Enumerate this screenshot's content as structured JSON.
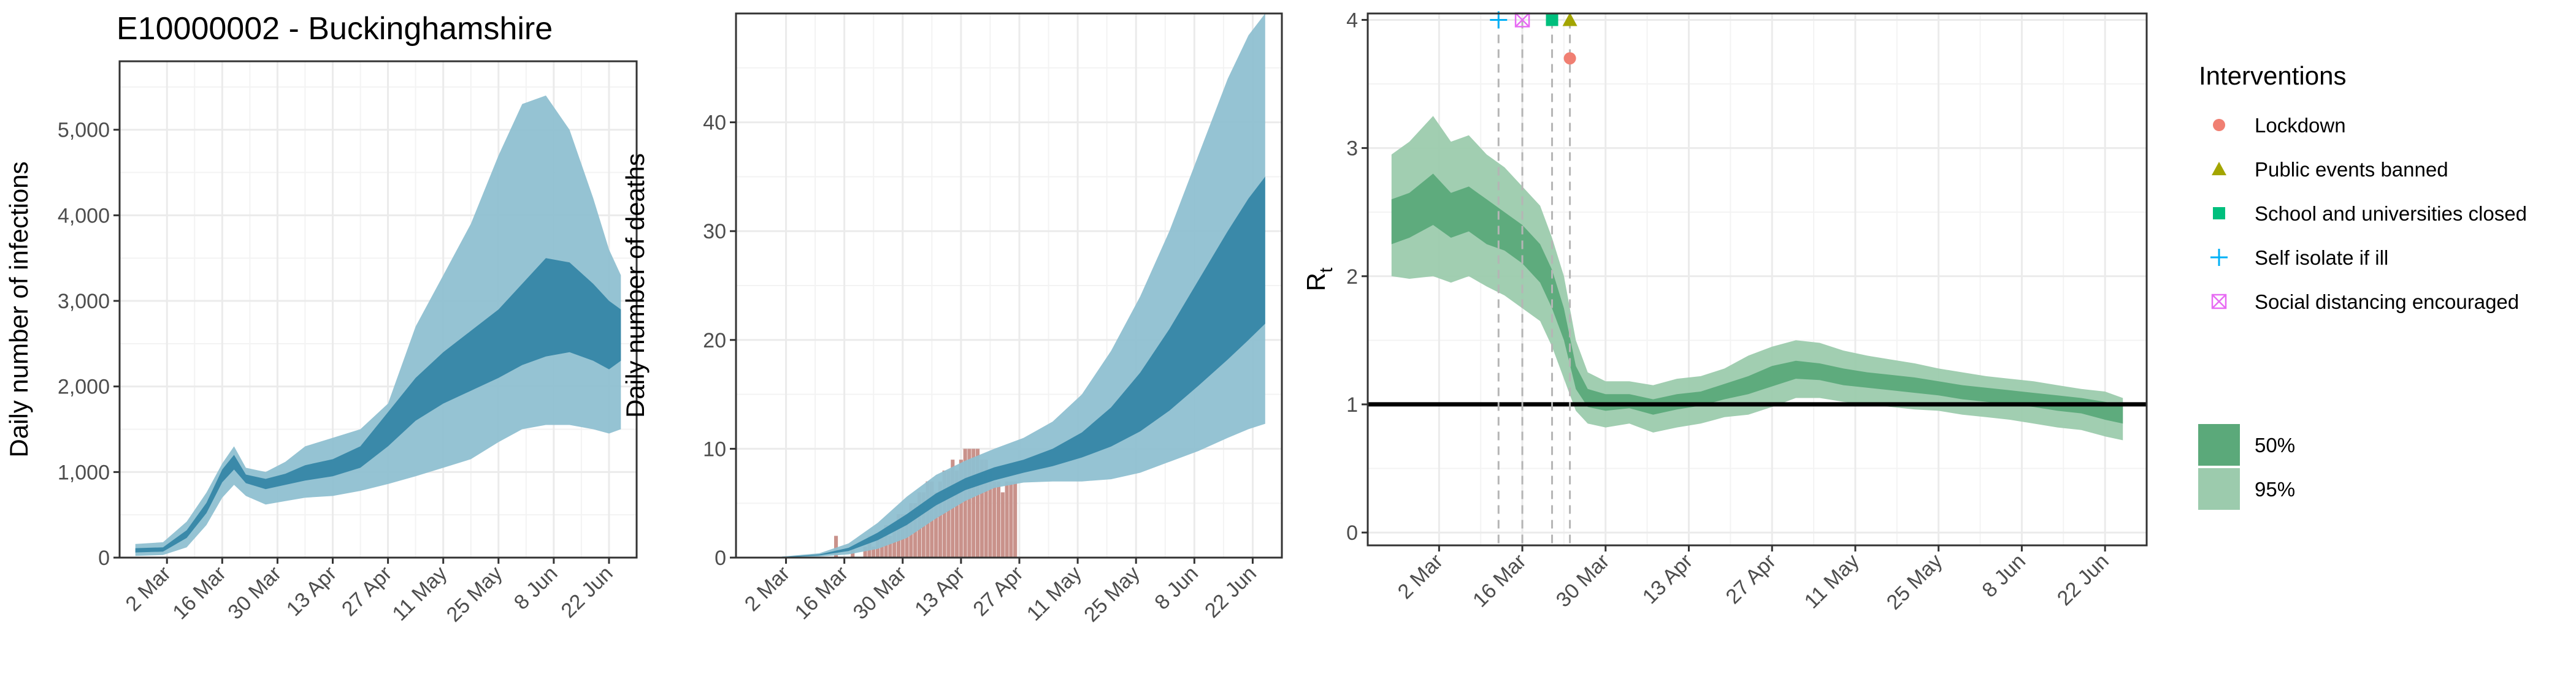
{
  "title": "E10000002 - Buckinghamshire",
  "colors": {
    "infections_band_outer": "#8fc0d1",
    "infections_band_inner": "#3586a6",
    "deaths_bars": "#c9928b",
    "rt_band_outer": "#9ccbad",
    "rt_band_inner": "#5ba97a",
    "reference_line": "#000000",
    "grid": "#ebebeb",
    "lockdown": "#f07f72",
    "public_events_banned": "#a3a500",
    "school_closed": "#00bf7d",
    "self_isolate": "#00b0f6",
    "social_distancing": "#e76bf3"
  },
  "chart_data": [
    {
      "type": "area",
      "id": "infections",
      "title": "E10000002 - Buckinghamshire",
      "xlabel": "",
      "ylabel": "Daily number of infections",
      "x_tick_labels": [
        "2 Mar",
        "16 Mar",
        "30 Mar",
        "13 Apr",
        "27 Apr",
        "11 May",
        "25 May",
        "8 Jun",
        "22 Jun"
      ],
      "y_ticks": [
        "0",
        "1,000",
        "2,000",
        "3,000",
        "4,000",
        "5,000"
      ],
      "xlim": [
        "2020-02-19",
        "2020-06-29"
      ],
      "ylim": [
        0,
        5800
      ],
      "grid": true,
      "series": [
        {
          "kind": "ribbon95",
          "points": [
            [
              "2020-02-23",
              20,
              160
            ],
            [
              "2020-03-01",
              30,
              180
            ],
            [
              "2020-03-07",
              120,
              420
            ],
            [
              "2020-03-12",
              380,
              760
            ],
            [
              "2020-03-16",
              700,
              1100
            ],
            [
              "2020-03-19",
              850,
              1300
            ],
            [
              "2020-03-22",
              720,
              1050
            ],
            [
              "2020-03-27",
              620,
              1000
            ],
            [
              "2020-04-01",
              660,
              1120
            ],
            [
              "2020-04-06",
              700,
              1300
            ],
            [
              "2020-04-13",
              720,
              1400
            ],
            [
              "2020-04-20",
              780,
              1500
            ],
            [
              "2020-04-27",
              860,
              1800
            ],
            [
              "2020-05-04",
              950,
              2700
            ],
            [
              "2020-05-11",
              1050,
              3300
            ],
            [
              "2020-05-18",
              1150,
              3900
            ],
            [
              "2020-05-25",
              1350,
              4700
            ],
            [
              "2020-05-31",
              1500,
              5300
            ],
            [
              "2020-06-06",
              1550,
              5400
            ],
            [
              "2020-06-12",
              1550,
              5000
            ],
            [
              "2020-06-18",
              1500,
              4200
            ],
            [
              "2020-06-22",
              1450,
              3600
            ],
            [
              "2020-06-25",
              1500,
              3300
            ]
          ]
        },
        {
          "kind": "ribbon50",
          "points": [
            [
              "2020-02-23",
              60,
              110
            ],
            [
              "2020-03-01",
              70,
              120
            ],
            [
              "2020-03-07",
              230,
              320
            ],
            [
              "2020-03-12",
              520,
              640
            ],
            [
              "2020-03-16",
              880,
              1030
            ],
            [
              "2020-03-19",
              1030,
              1200
            ],
            [
              "2020-03-22",
              870,
              970
            ],
            [
              "2020-03-27",
              800,
              920
            ],
            [
              "2020-04-01",
              850,
              980
            ],
            [
              "2020-04-06",
              900,
              1080
            ],
            [
              "2020-04-13",
              950,
              1150
            ],
            [
              "2020-04-20",
              1050,
              1300
            ],
            [
              "2020-04-27",
              1300,
              1700
            ],
            [
              "2020-05-04",
              1600,
              2100
            ],
            [
              "2020-05-11",
              1800,
              2400
            ],
            [
              "2020-05-18",
              1950,
              2650
            ],
            [
              "2020-05-25",
              2100,
              2900
            ],
            [
              "2020-05-31",
              2250,
              3200
            ],
            [
              "2020-06-06",
              2350,
              3500
            ],
            [
              "2020-06-12",
              2400,
              3450
            ],
            [
              "2020-06-18",
              2300,
              3200
            ],
            [
              "2020-06-22",
              2200,
              3000
            ],
            [
              "2020-06-25",
              2300,
              2900
            ]
          ]
        }
      ]
    },
    {
      "type": "bar",
      "id": "deaths",
      "xlabel": "",
      "ylabel": "Daily number of deaths",
      "x_tick_labels": [
        "2 Mar",
        "16 Mar",
        "30 Mar",
        "13 Apr",
        "27 Apr",
        "11 May",
        "25 May",
        "8 Jun",
        "22 Jun"
      ],
      "y_ticks": [
        "0",
        "10",
        "20",
        "30",
        "40"
      ],
      "xlim": [
        "2020-02-19",
        "2020-06-29"
      ],
      "ylim": [
        0,
        50
      ],
      "grid": true,
      "bars": {
        "start": "2020-03-10",
        "values": [
          0,
          0,
          0,
          0,
          2,
          0,
          0,
          0,
          1,
          0,
          0,
          1,
          2,
          1,
          2,
          2,
          3,
          2,
          3,
          4,
          4,
          4,
          5,
          5,
          6,
          6,
          7,
          7,
          6,
          7,
          8,
          8,
          9,
          8,
          9,
          10,
          10,
          10,
          10,
          9,
          9,
          8,
          7,
          7,
          6,
          7,
          7,
          7
        ]
      },
      "series": [
        {
          "kind": "ribbon95",
          "points": [
            [
              "2020-03-01",
              0,
              0.1
            ],
            [
              "2020-03-10",
              0.1,
              0.4
            ],
            [
              "2020-03-17",
              0.3,
              1.3
            ],
            [
              "2020-03-24",
              0.8,
              3.2
            ],
            [
              "2020-03-31",
              1.8,
              5.6
            ],
            [
              "2020-04-07",
              3.6,
              7.6
            ],
            [
              "2020-04-14",
              5.2,
              8.9
            ],
            [
              "2020-04-21",
              6.4,
              10.0
            ],
            [
              "2020-04-28",
              6.9,
              11.0
            ],
            [
              "2020-05-05",
              7.0,
              12.5
            ],
            [
              "2020-05-12",
              7.0,
              15.0
            ],
            [
              "2020-05-19",
              7.2,
              19.0
            ],
            [
              "2020-05-26",
              7.8,
              24.0
            ],
            [
              "2020-06-02",
              8.8,
              30.0
            ],
            [
              "2020-06-09",
              9.8,
              37.0
            ],
            [
              "2020-06-16",
              11.0,
              44.0
            ],
            [
              "2020-06-21",
              11.8,
              48.0
            ],
            [
              "2020-06-25",
              12.3,
              50.0
            ]
          ]
        },
        {
          "kind": "ribbon50",
          "points": [
            [
              "2020-03-01",
              0,
              0.05
            ],
            [
              "2020-03-10",
              0.2,
              0.3
            ],
            [
              "2020-03-17",
              0.6,
              0.9
            ],
            [
              "2020-03-24",
              1.6,
              2.3
            ],
            [
              "2020-03-31",
              3.0,
              4.0
            ],
            [
              "2020-04-07",
              4.8,
              5.9
            ],
            [
              "2020-04-14",
              6.2,
              7.3
            ],
            [
              "2020-04-21",
              7.1,
              8.3
            ],
            [
              "2020-04-28",
              7.8,
              9.0
            ],
            [
              "2020-05-05",
              8.4,
              10.0
            ],
            [
              "2020-05-12",
              9.2,
              11.5
            ],
            [
              "2020-05-19",
              10.2,
              13.8
            ],
            [
              "2020-05-26",
              11.6,
              17.0
            ],
            [
              "2020-06-02",
              13.5,
              21.0
            ],
            [
              "2020-06-09",
              15.8,
              25.5
            ],
            [
              "2020-06-16",
              18.2,
              30.0
            ],
            [
              "2020-06-21",
              20.0,
              33.0
            ],
            [
              "2020-06-25",
              21.5,
              35.0
            ]
          ]
        }
      ]
    },
    {
      "type": "area",
      "id": "rt",
      "xlabel": "",
      "ylabel": "R",
      "ylabel_subscript": "t",
      "x_tick_labels": [
        "2 Mar",
        "16 Mar",
        "30 Mar",
        "13 Apr",
        "27 Apr",
        "11 May",
        "25 May",
        "8 Jun",
        "22 Jun"
      ],
      "y_ticks": [
        "0",
        "1",
        "2",
        "3",
        "4"
      ],
      "xlim": [
        "2020-02-19",
        "2020-06-29"
      ],
      "ylim": [
        -0.1,
        4.05
      ],
      "grid": true,
      "reference_line": 1,
      "interventions": [
        {
          "date": "2020-03-12",
          "type": "self_isolate",
          "y": 4.0
        },
        {
          "date": "2020-03-16",
          "type": "social_distancing",
          "y": 4.0
        },
        {
          "date": "2020-03-21",
          "type": "school_closed",
          "y": 4.0
        },
        {
          "date": "2020-03-24",
          "type": "public_events_banned",
          "y": 4.0
        },
        {
          "date": "2020-03-24",
          "type": "lockdown",
          "y": 3.7
        }
      ],
      "series": [
        {
          "kind": "ribbon95",
          "points": [
            [
              "2020-02-23",
              2.0,
              2.95
            ],
            [
              "2020-02-26",
              1.98,
              3.05
            ],
            [
              "2020-03-01",
              2.0,
              3.25
            ],
            [
              "2020-03-04",
              1.95,
              3.05
            ],
            [
              "2020-03-07",
              2.0,
              3.1
            ],
            [
              "2020-03-10",
              1.92,
              2.95
            ],
            [
              "2020-03-13",
              1.85,
              2.85
            ],
            [
              "2020-03-16",
              1.75,
              2.7
            ],
            [
              "2020-03-19",
              1.65,
              2.55
            ],
            [
              "2020-03-21",
              1.45,
              2.3
            ],
            [
              "2020-03-23",
              1.2,
              2.0
            ],
            [
              "2020-03-25",
              0.95,
              1.5
            ],
            [
              "2020-03-27",
              0.85,
              1.25
            ],
            [
              "2020-03-30",
              0.82,
              1.18
            ],
            [
              "2020-04-03",
              0.85,
              1.18
            ],
            [
              "2020-04-07",
              0.78,
              1.15
            ],
            [
              "2020-04-11",
              0.82,
              1.2
            ],
            [
              "2020-04-15",
              0.85,
              1.22
            ],
            [
              "2020-04-19",
              0.9,
              1.28
            ],
            [
              "2020-04-23",
              0.92,
              1.38
            ],
            [
              "2020-04-27",
              0.98,
              1.45
            ],
            [
              "2020-05-01",
              1.05,
              1.5
            ],
            [
              "2020-05-05",
              1.05,
              1.48
            ],
            [
              "2020-05-09",
              1.02,
              1.42
            ],
            [
              "2020-05-13",
              1.0,
              1.38
            ],
            [
              "2020-05-17",
              0.98,
              1.35
            ],
            [
              "2020-05-21",
              0.96,
              1.32
            ],
            [
              "2020-05-25",
              0.95,
              1.28
            ],
            [
              "2020-05-29",
              0.92,
              1.25
            ],
            [
              "2020-06-02",
              0.9,
              1.22
            ],
            [
              "2020-06-06",
              0.88,
              1.2
            ],
            [
              "2020-06-10",
              0.85,
              1.18
            ],
            [
              "2020-06-14",
              0.82,
              1.15
            ],
            [
              "2020-06-18",
              0.8,
              1.12
            ],
            [
              "2020-06-22",
              0.75,
              1.1
            ],
            [
              "2020-06-25",
              0.72,
              1.05
            ]
          ]
        },
        {
          "kind": "ribbon50",
          "points": [
            [
              "2020-02-23",
              2.25,
              2.6
            ],
            [
              "2020-02-26",
              2.3,
              2.65
            ],
            [
              "2020-03-01",
              2.4,
              2.8
            ],
            [
              "2020-03-04",
              2.3,
              2.65
            ],
            [
              "2020-03-07",
              2.35,
              2.7
            ],
            [
              "2020-03-10",
              2.25,
              2.6
            ],
            [
              "2020-03-13",
              2.2,
              2.5
            ],
            [
              "2020-03-16",
              2.1,
              2.4
            ],
            [
              "2020-03-19",
              1.95,
              2.25
            ],
            [
              "2020-03-21",
              1.75,
              2.05
            ],
            [
              "2020-03-23",
              1.5,
              1.75
            ],
            [
              "2020-03-25",
              1.12,
              1.3
            ],
            [
              "2020-03-27",
              0.98,
              1.12
            ],
            [
              "2020-03-30",
              0.95,
              1.08
            ],
            [
              "2020-04-03",
              0.97,
              1.08
            ],
            [
              "2020-04-07",
              0.92,
              1.04
            ],
            [
              "2020-04-11",
              0.96,
              1.08
            ],
            [
              "2020-04-15",
              0.99,
              1.1
            ],
            [
              "2020-04-19",
              1.04,
              1.16
            ],
            [
              "2020-04-23",
              1.08,
              1.22
            ],
            [
              "2020-04-27",
              1.14,
              1.3
            ],
            [
              "2020-05-01",
              1.2,
              1.34
            ],
            [
              "2020-05-05",
              1.19,
              1.32
            ],
            [
              "2020-05-09",
              1.15,
              1.28
            ],
            [
              "2020-05-13",
              1.13,
              1.25
            ],
            [
              "2020-05-17",
              1.11,
              1.23
            ],
            [
              "2020-05-21",
              1.09,
              1.21
            ],
            [
              "2020-05-25",
              1.07,
              1.18
            ],
            [
              "2020-05-29",
              1.04,
              1.15
            ],
            [
              "2020-06-02",
              1.02,
              1.13
            ],
            [
              "2020-06-06",
              1.0,
              1.11
            ],
            [
              "2020-06-10",
              0.98,
              1.09
            ],
            [
              "2020-06-14",
              0.95,
              1.07
            ],
            [
              "2020-06-18",
              0.93,
              1.05
            ],
            [
              "2020-06-22",
              0.88,
              1.02
            ],
            [
              "2020-06-25",
              0.85,
              0.99
            ]
          ]
        }
      ]
    }
  ],
  "legend": {
    "title": "Interventions",
    "items": [
      {
        "label": "Lockdown",
        "type": "lockdown",
        "shape": "circle"
      },
      {
        "label": "Public events banned",
        "type": "public_events_banned",
        "shape": "triangle"
      },
      {
        "label": "School and universities closed",
        "type": "school_closed",
        "shape": "square"
      },
      {
        "label": "Self isolate if ill",
        "type": "self_isolate",
        "shape": "plus"
      },
      {
        "label": "Social distancing encouraged",
        "type": "social_distancing",
        "shape": "boxx"
      }
    ],
    "bands": [
      {
        "label": "50%"
      },
      {
        "label": "95%"
      }
    ]
  }
}
